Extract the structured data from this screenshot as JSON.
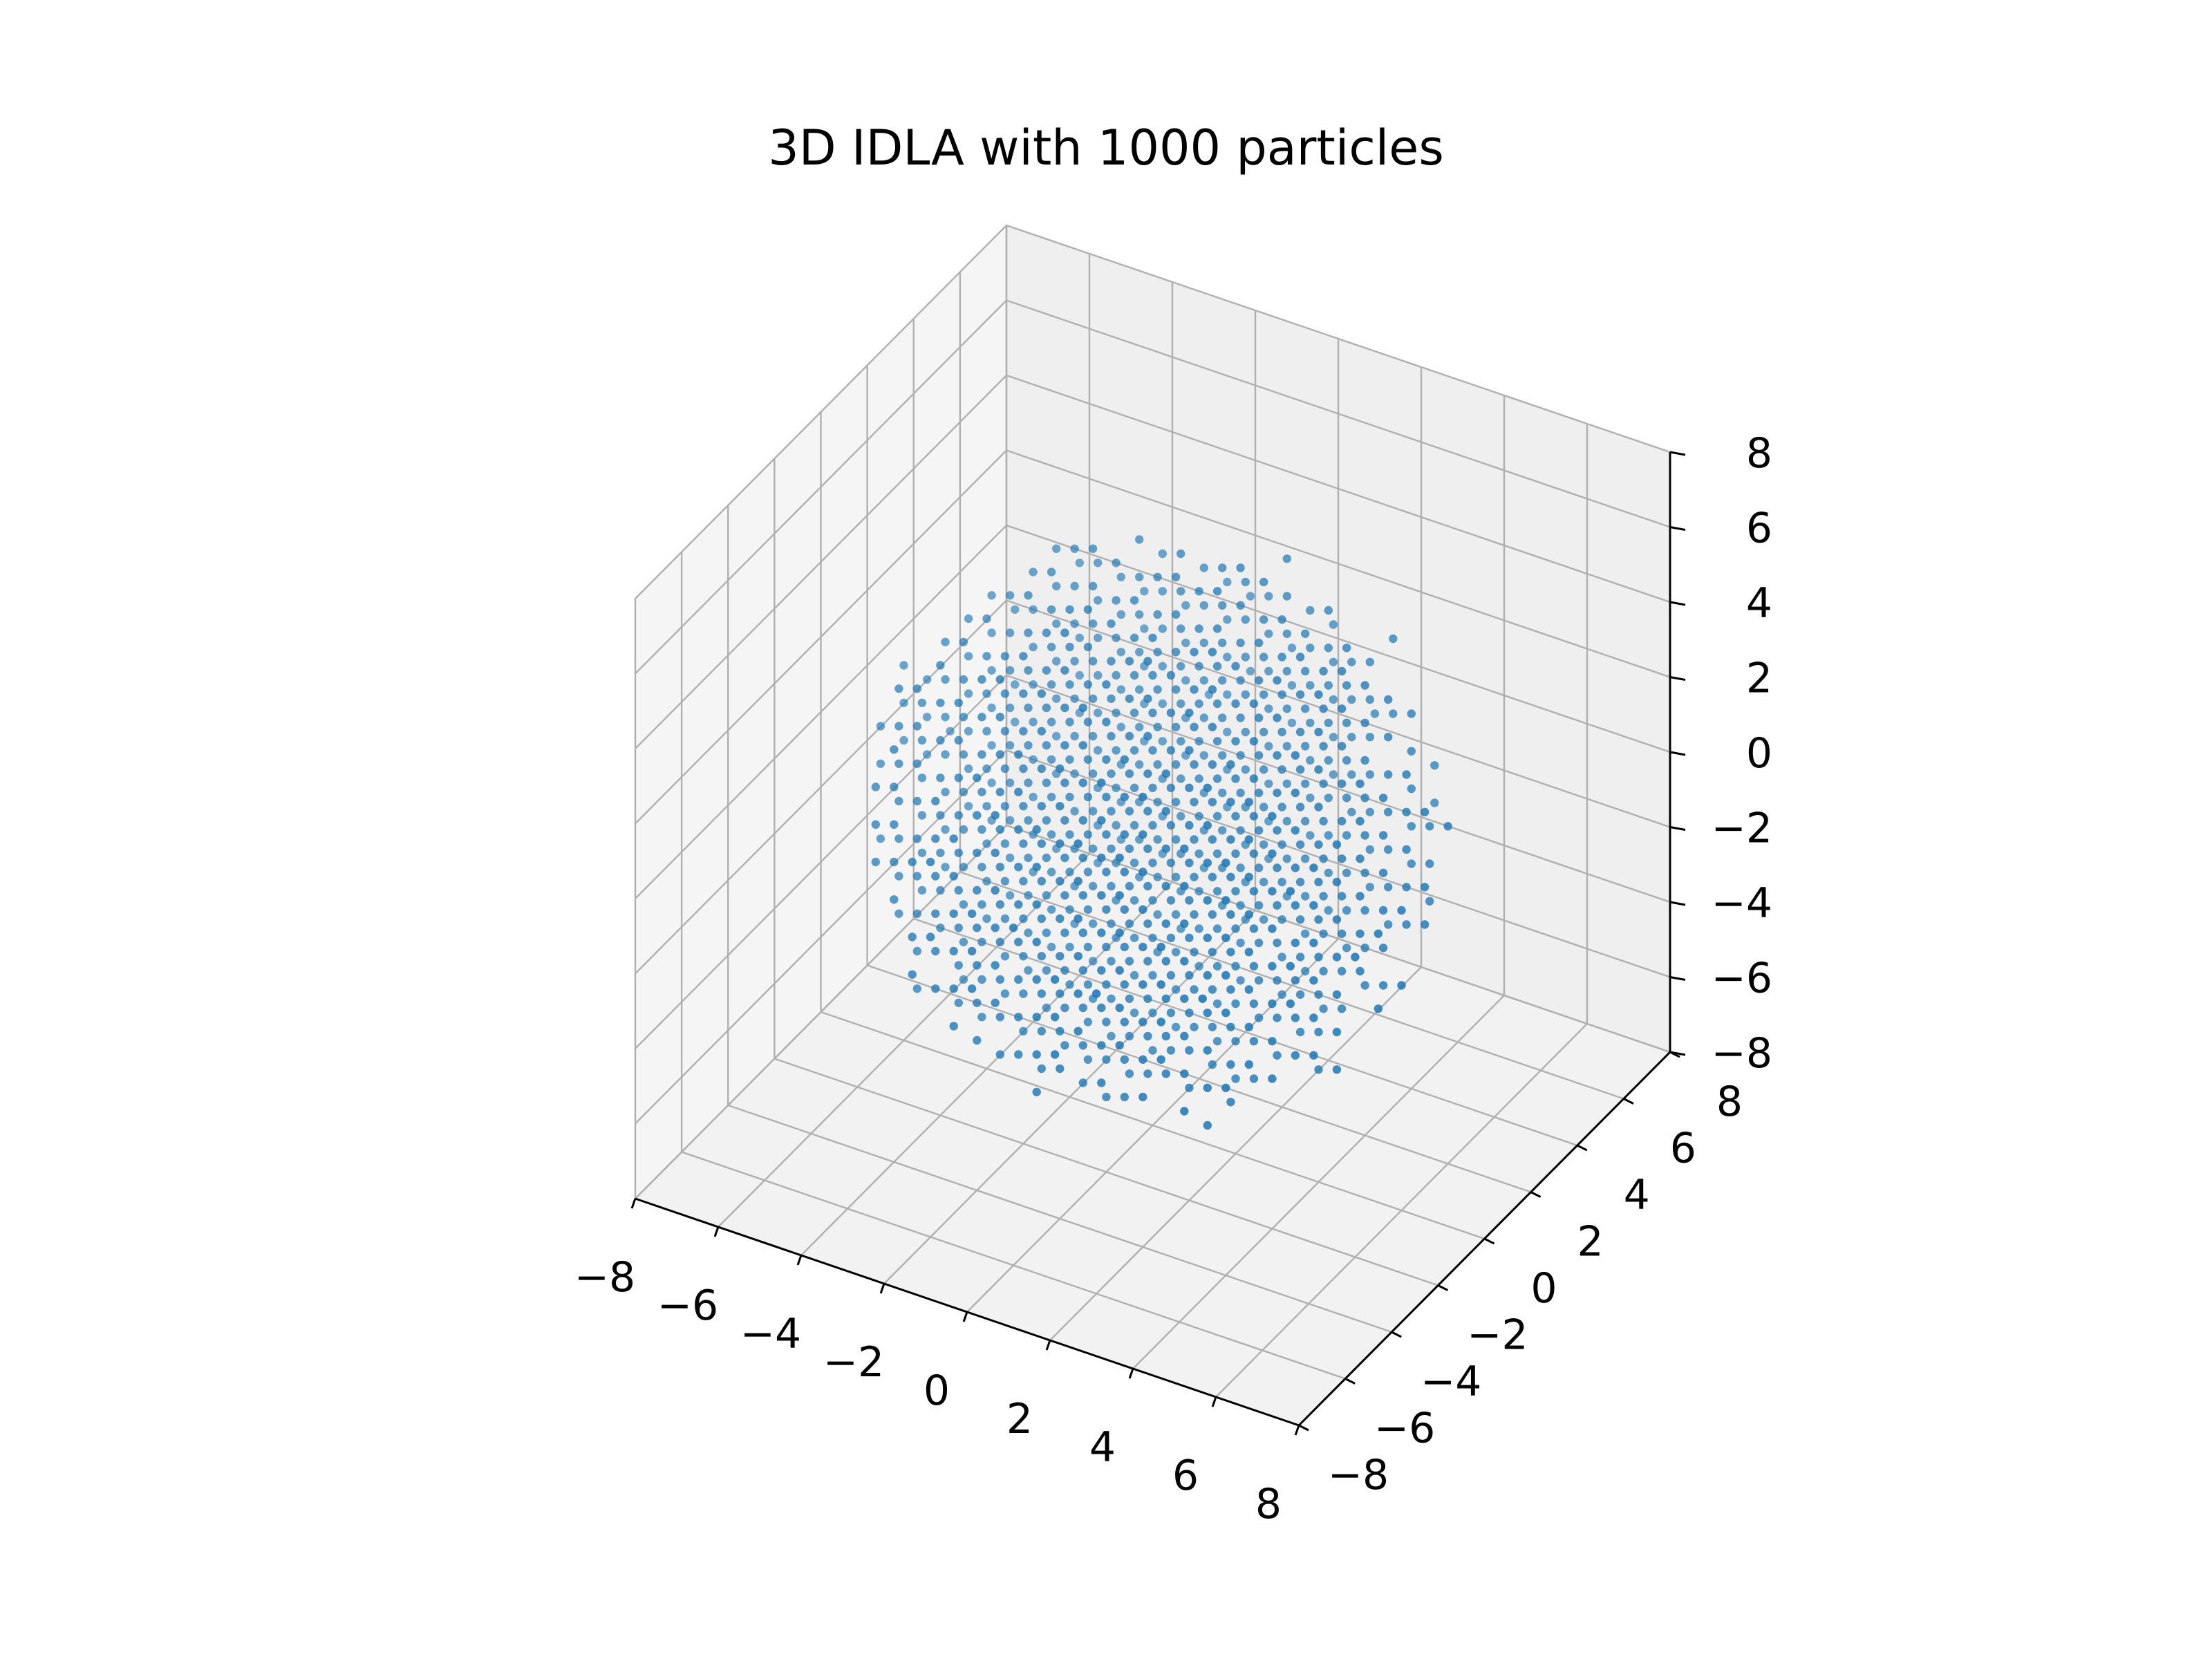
{
  "chart_data": {
    "type": "scatter",
    "projection": "3d",
    "title": "3D IDLA with 1000 particles",
    "xlabel": "",
    "ylabel": "",
    "zlabel": "",
    "xlim": [
      -8,
      8
    ],
    "ylim": [
      -8,
      8
    ],
    "zlim": [
      -8,
      8
    ],
    "x_ticks": [
      -8,
      -6,
      -4,
      -2,
      0,
      2,
      4,
      6,
      8
    ],
    "y_ticks": [
      -8,
      -6,
      -4,
      -2,
      0,
      2,
      4,
      6,
      8
    ],
    "z_ticks": [
      -8,
      -6,
      -4,
      -2,
      0,
      2,
      4,
      6,
      8
    ],
    "x_tick_labels": [
      "−8",
      "−6",
      "−4",
      "−2",
      "0",
      "2",
      "4",
      "6",
      "8"
    ],
    "y_tick_labels": [
      "−8",
      "−6",
      "−4",
      "−2",
      "0",
      "2",
      "4",
      "6",
      "8"
    ],
    "z_tick_labels": [
      "−8",
      "−6",
      "−4",
      "−2",
      "0",
      "2",
      "4",
      "6",
      "8"
    ],
    "grid": true,
    "view": {
      "elevation_deg": 30,
      "azimuth_deg": -60
    },
    "series": [
      {
        "particle_count": 1000,
        "lattice": "integer cubic lattice",
        "approx_radius": 6.2,
        "center": [
          0,
          0,
          0
        ],
        "color": "#1f77b4"
      }
    ]
  },
  "colors": {
    "marker": "#1f77b4",
    "grid": "#b0b0b0",
    "pane_x": "#f5f5f5",
    "pane_y": "#efefef",
    "pane_z": "#f2f2f2",
    "axis_line": "#000000"
  }
}
